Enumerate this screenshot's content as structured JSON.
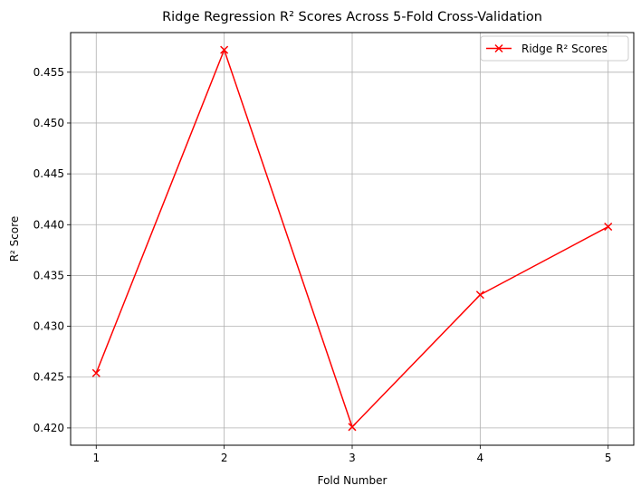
{
  "chart_data": {
    "type": "line",
    "title": "Ridge Regression R² Scores Across 5-Fold Cross-Validation",
    "xlabel": "Fold Number",
    "ylabel": "R² Score",
    "x": [
      1,
      2,
      3,
      4,
      5
    ],
    "x_tick_labels": [
      "1",
      "2",
      "3",
      "4",
      "5"
    ],
    "y_ticks": [
      0.42,
      0.425,
      0.43,
      0.435,
      0.44,
      0.445,
      0.45,
      0.455
    ],
    "y_tick_labels": [
      "0.420",
      "0.425",
      "0.430",
      "0.435",
      "0.440",
      "0.445",
      "0.450",
      "0.455"
    ],
    "xlim": [
      0.8,
      5.2
    ],
    "ylim": [
      0.4183,
      0.4589
    ],
    "grid": true,
    "legend_position": "top-right",
    "series": [
      {
        "name": "Ridge R² Scores",
        "values": [
          0.4254,
          0.4572,
          0.4201,
          0.4331,
          0.4398
        ],
        "color": "#ff0000",
        "marker": "x"
      }
    ]
  }
}
